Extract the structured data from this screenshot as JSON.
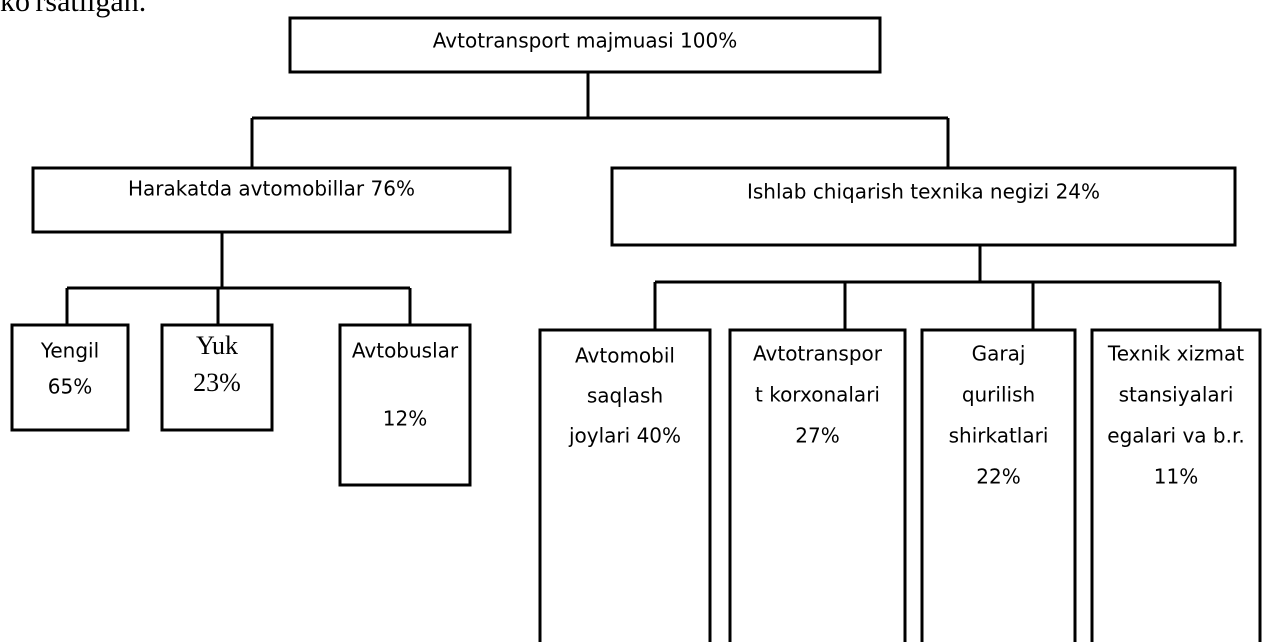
{
  "caption": "ko'rsatilgan.",
  "nodes": [
    {
      "lines": [
        "Avtotransport majmuasi 100%"
      ]
    },
    {
      "lines": [
        "Harakatda avtomobillar 76%"
      ]
    },
    {
      "lines": [
        "Ishlab chiqarish texnika negizi 24%"
      ]
    },
    {
      "lines": [
        "Yengil",
        "65%"
      ]
    },
    {
      "lines": [
        "Yuk",
        "23%"
      ]
    },
    {
      "lines": [
        "Avtobuslar",
        "12%"
      ]
    },
    {
      "lines": [
        "Avtomobil",
        "saqlash",
        "joylari 40%"
      ]
    },
    {
      "lines": [
        "Avtotranspor",
        "t korxonalari",
        "27%"
      ]
    },
    {
      "lines": [
        "Garaj",
        "qurilish",
        "shirkatlari",
        "22%"
      ]
    },
    {
      "lines": [
        "Texnik xizmat",
        "stansiyalari",
        "egalari va b.r.",
        "11%"
      ]
    }
  ]
}
